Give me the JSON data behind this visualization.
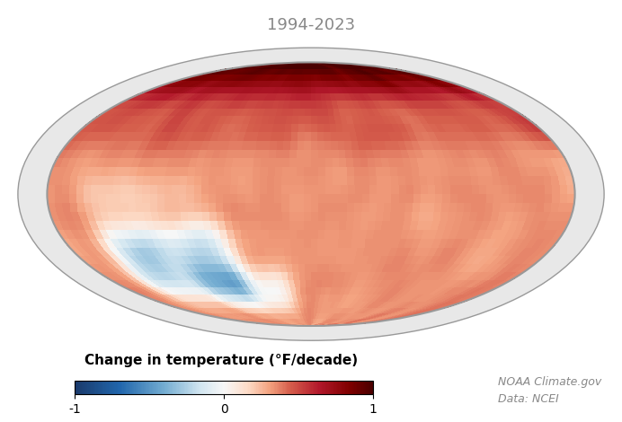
{
  "title": "1994-2023",
  "title_color": "#888888",
  "title_fontsize": 13,
  "colorbar_label": "Change in temperature (°F/decade)",
  "colorbar_label_fontsize": 11,
  "colorbar_ticks": [
    -1,
    0,
    1
  ],
  "vmin": -1.5,
  "vmax": 1.5,
  "noaa_text": "NOAA Climate.gov",
  "ncei_text": "Data: NCEI",
  "background_color": "#ffffff",
  "credit_color": "#888888",
  "credit_fontsize": 9,
  "fig_width": 6.92,
  "fig_height": 4.7,
  "dpi": 100
}
